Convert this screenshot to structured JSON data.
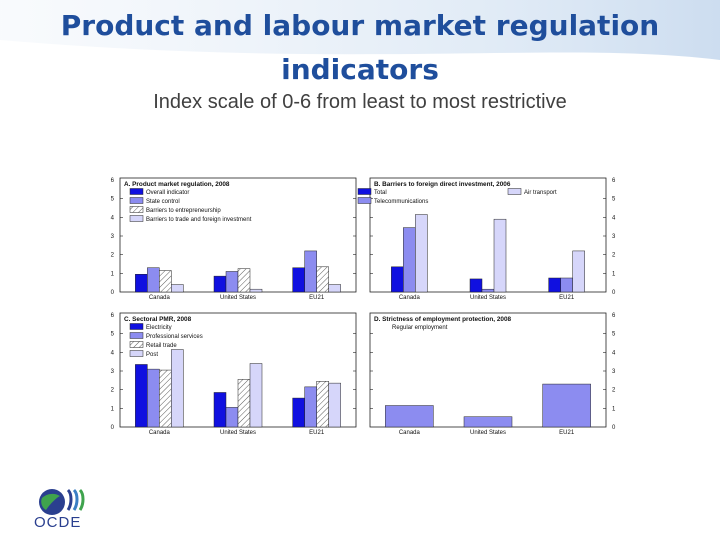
{
  "slide": {
    "title_line1": "Product and labour market regulation",
    "title_line2": "indicators",
    "subtitle": "Index scale of 0-6 from least to most restrictive",
    "logo_text": "OCDE"
  },
  "colors": {
    "title": "#1f4e9c",
    "dark_blue": "#1010e0",
    "mid_blue": "#8c8cf0",
    "light_blue": "#d6d6fa",
    "hatched": "#ffffff",
    "pale_blue": "#e8e8fc"
  },
  "chart_data": [
    {
      "type": "bar",
      "title": "A. Product market regulation, 2008",
      "categories": [
        "Canada",
        "United States",
        "EU21"
      ],
      "ylim": [
        0,
        6
      ],
      "yticks": [
        0,
        1,
        2,
        3,
        4,
        5,
        6
      ],
      "series": [
        {
          "name": "Overall indicator",
          "style": "dark_blue",
          "values": [
            0.95,
            0.85,
            1.3
          ]
        },
        {
          "name": "State control",
          "style": "mid_blue",
          "values": [
            1.3,
            1.1,
            2.2
          ]
        },
        {
          "name": "Barriers to entrepreneurship",
          "style": "hatched",
          "values": [
            1.15,
            1.25,
            1.35
          ]
        },
        {
          "name": "Barriers to trade and foreign investment",
          "style": "light_blue",
          "values": [
            0.4,
            0.15,
            0.4
          ]
        }
      ]
    },
    {
      "type": "bar",
      "title": "B. Barriers to foreign direct investment, 2006",
      "categories": [
        "Canada",
        "United States",
        "EU21"
      ],
      "ylim": [
        0,
        6
      ],
      "yticks": [
        0,
        1,
        2,
        3,
        4,
        5,
        6
      ],
      "series": [
        {
          "name": "Total",
          "style": "dark_blue",
          "values": [
            1.35,
            0.7,
            0.75
          ]
        },
        {
          "name": "Telecommunications",
          "style": "mid_blue",
          "values": [
            3.45,
            0.15,
            0.75
          ]
        },
        {
          "name": "Air transport",
          "style": "light_blue",
          "values": [
            4.15,
            3.9,
            2.2
          ]
        }
      ]
    },
    {
      "type": "bar",
      "title": "C. Sectoral PMR, 2008",
      "categories": [
        "Canada",
        "United States",
        "EU21"
      ],
      "ylim": [
        0,
        6
      ],
      "yticks": [
        0,
        1,
        2,
        3,
        4,
        5,
        6
      ],
      "series": [
        {
          "name": "Electricity",
          "style": "dark_blue",
          "values": [
            3.35,
            1.85,
            1.55
          ]
        },
        {
          "name": "Professional services",
          "style": "mid_blue",
          "values": [
            3.1,
            1.05,
            2.15
          ]
        },
        {
          "name": "Retail trade",
          "style": "hatched",
          "values": [
            3.05,
            2.55,
            2.45
          ]
        },
        {
          "name": "Post",
          "style": "light_blue",
          "values": [
            4.15,
            3.4,
            2.35
          ]
        }
      ]
    },
    {
      "type": "bar",
      "title": "D. Strictness of employment protection, 2008",
      "categories": [
        "Canada",
        "United States",
        "EU21"
      ],
      "ylim": [
        0,
        6
      ],
      "yticks": [
        0,
        1,
        2,
        3,
        4,
        5,
        6
      ],
      "series": [
        {
          "name": "Regular employment",
          "style": "mid_blue",
          "values": [
            1.15,
            0.55,
            2.3
          ]
        }
      ]
    }
  ]
}
